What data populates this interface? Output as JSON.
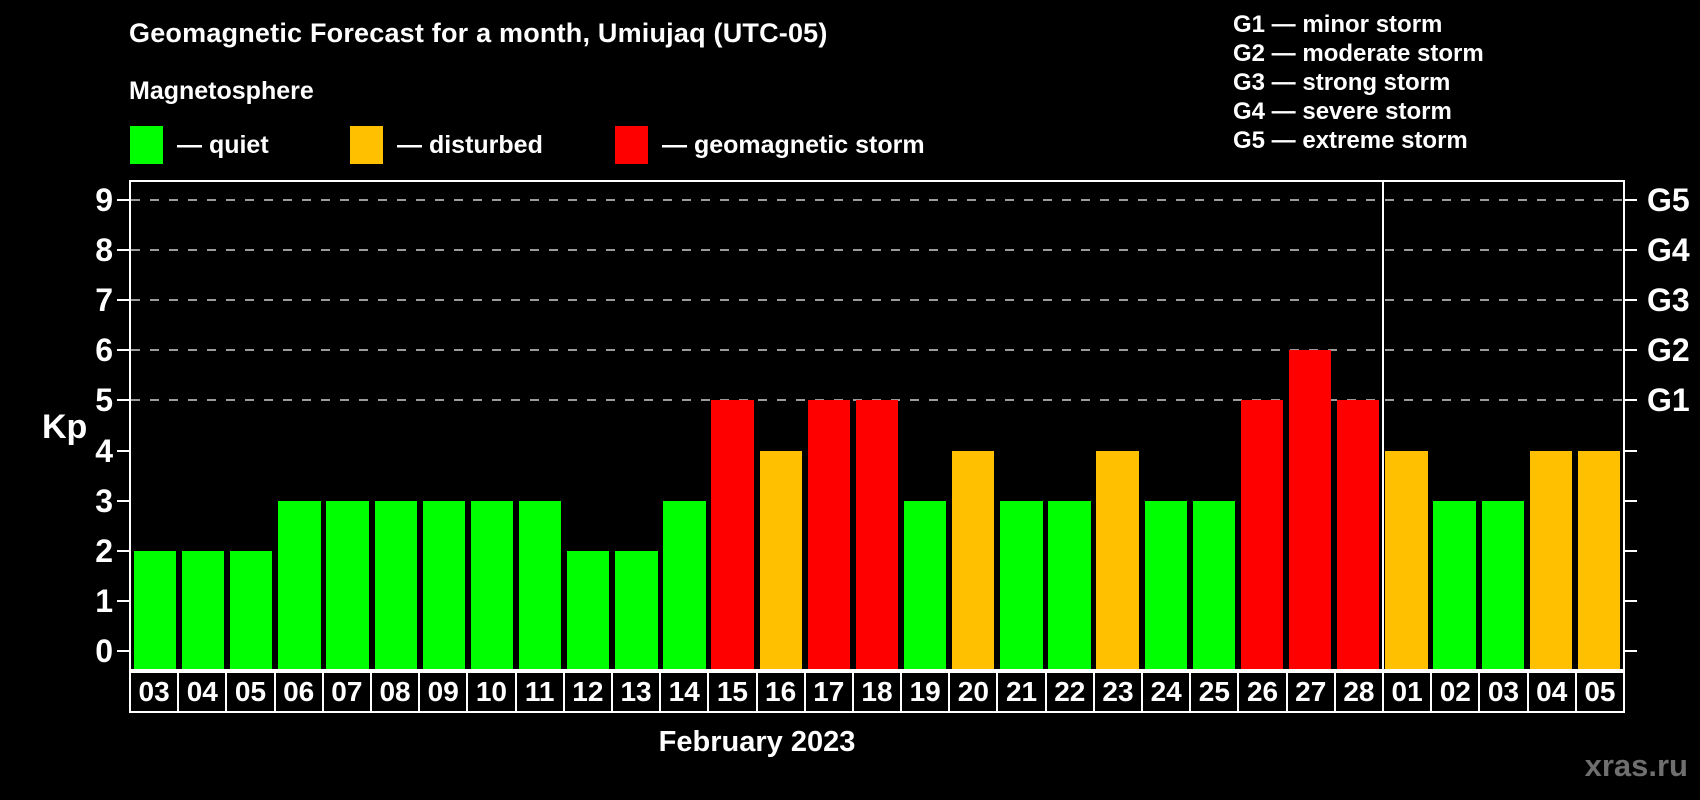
{
  "title": "Geomagnetic Forecast for a month, Umiujaq (UTC-05)",
  "magnetosphere_label": "Magnetosphere",
  "legend": {
    "items": [
      {
        "name": "quiet",
        "label": "— quiet",
        "color": "#00ff00"
      },
      {
        "name": "disturbed",
        "label": "— disturbed",
        "color": "#ffc000"
      },
      {
        "name": "storm",
        "label": "— geomagnetic storm",
        "color": "#ff0000"
      }
    ]
  },
  "g_scale_legend": {
    "items": [
      "G1 — minor storm",
      "G2 — moderate storm",
      "G3 — strong storm",
      "G4 — severe storm",
      "G5 — extreme storm"
    ]
  },
  "axes": {
    "y_label": "Kp",
    "y_ticks": [
      "0",
      "1",
      "2",
      "3",
      "4",
      "5",
      "6",
      "7",
      "8",
      "9"
    ],
    "right_labels": [
      {
        "kp": 5,
        "label": "G1"
      },
      {
        "kp": 6,
        "label": "G2"
      },
      {
        "kp": 7,
        "label": "G3"
      },
      {
        "kp": 8,
        "label": "G4"
      },
      {
        "kp": 9,
        "label": "G5"
      }
    ],
    "x_title": "February 2023"
  },
  "watermark": "xras.ru",
  "chart_data": {
    "type": "bar",
    "title": "Geomagnetic Forecast for a month, Umiujaq (UTC-05)",
    "ylabel": "Kp",
    "xlabel": "February 2023",
    "ylim": [
      0,
      9
    ],
    "plot_padding_kp": 0.35,
    "gridlines_kp": [
      5,
      6,
      7,
      8,
      9
    ],
    "grid": "dashed, only at storm levels",
    "legend_position": "top-left and top-right",
    "categories": [
      "03",
      "04",
      "05",
      "06",
      "07",
      "08",
      "09",
      "10",
      "11",
      "12",
      "13",
      "14",
      "15",
      "16",
      "17",
      "18",
      "19",
      "20",
      "21",
      "22",
      "23",
      "24",
      "25",
      "26",
      "27",
      "28",
      "01",
      "02",
      "03",
      "04",
      "05"
    ],
    "values": [
      2,
      2,
      2,
      3,
      3,
      3,
      3,
      3,
      3,
      2,
      2,
      3,
      5,
      4,
      5,
      5,
      3,
      4,
      3,
      3,
      4,
      3,
      3,
      5,
      6,
      5,
      4,
      3,
      3,
      4,
      4
    ],
    "statuses": [
      "quiet",
      "quiet",
      "quiet",
      "quiet",
      "quiet",
      "quiet",
      "quiet",
      "quiet",
      "quiet",
      "quiet",
      "quiet",
      "quiet",
      "storm",
      "disturbed",
      "storm",
      "storm",
      "quiet",
      "disturbed",
      "quiet",
      "quiet",
      "disturbed",
      "quiet",
      "quiet",
      "storm",
      "storm",
      "storm",
      "disturbed",
      "quiet",
      "quiet",
      "disturbed",
      "disturbed"
    ],
    "status_colors": {
      "quiet": "#00ff00",
      "disturbed": "#ffc000",
      "storm": "#ff0000"
    },
    "month_separator_after_index": 25
  }
}
